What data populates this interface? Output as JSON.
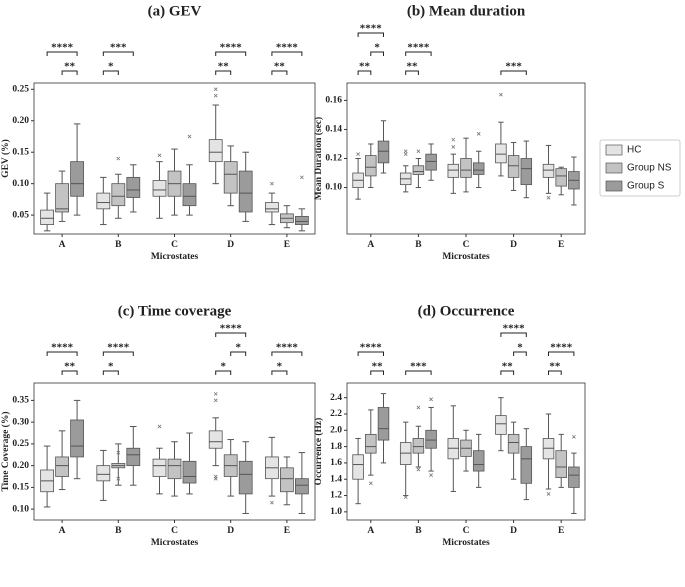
{
  "legend": {
    "position": "right",
    "entries": [
      {
        "name": "HC",
        "color": "#e4e4e4"
      },
      {
        "name": "Group NS",
        "color": "#c3c3c3"
      },
      {
        "name": "Group S",
        "color": "#9b9b9b"
      }
    ]
  },
  "chart_data": [
    {
      "type": "box",
      "title": "(a) GEV",
      "x_label": "Microstates",
      "y_label": "GEV (%)",
      "categories": [
        "A",
        "B",
        "C",
        "D",
        "E"
      ],
      "ylim": [
        0.02,
        0.26
      ],
      "yticks": [
        0.05,
        {
          "value": 0.1,
          "label": "0.10"
        },
        0.15,
        {
          "value": 0.2,
          "label": "0.20"
        },
        0.25
      ],
      "boxes": [
        [
          {
            "whislo": 0.025,
            "q1": 0.035,
            "med": 0.045,
            "q3": 0.058,
            "whishi": 0.085,
            "fliers": []
          },
          {
            "whislo": 0.04,
            "q1": 0.055,
            "med": 0.06,
            "q3": 0.1,
            "whishi": 0.12,
            "fliers": []
          },
          {
            "whislo": 0.05,
            "q1": 0.08,
            "med": 0.1,
            "q3": 0.135,
            "whishi": 0.195,
            "fliers": []
          }
        ],
        [
          {
            "whislo": 0.035,
            "q1": 0.06,
            "med": 0.07,
            "q3": 0.085,
            "whishi": 0.11,
            "fliers": []
          },
          {
            "whislo": 0.045,
            "q1": 0.065,
            "med": 0.08,
            "q3": 0.1,
            "whishi": 0.115,
            "fliers": [
              0.14
            ]
          },
          {
            "whislo": 0.055,
            "q1": 0.078,
            "med": 0.09,
            "q3": 0.11,
            "whishi": 0.13,
            "fliers": []
          }
        ],
        [
          {
            "whislo": 0.045,
            "q1": 0.08,
            "med": 0.09,
            "q3": 0.105,
            "whishi": 0.135,
            "fliers": [
              0.145
            ]
          },
          {
            "whislo": 0.05,
            "q1": 0.08,
            "med": 0.1,
            "q3": 0.12,
            "whishi": 0.155,
            "fliers": []
          },
          {
            "whislo": 0.05,
            "q1": 0.065,
            "med": 0.08,
            "q3": 0.1,
            "whishi": 0.13,
            "fliers": [
              0.175
            ]
          }
        ],
        [
          {
            "whislo": 0.1,
            "q1": 0.135,
            "med": 0.15,
            "q3": 0.17,
            "whishi": 0.225,
            "fliers": [
              0.24,
              0.25
            ]
          },
          {
            "whislo": 0.065,
            "q1": 0.085,
            "med": 0.115,
            "q3": 0.135,
            "whishi": 0.16,
            "fliers": []
          },
          {
            "whislo": 0.04,
            "q1": 0.055,
            "med": 0.085,
            "q3": 0.12,
            "whishi": 0.15,
            "fliers": []
          }
        ],
        [
          {
            "whislo": 0.035,
            "q1": 0.055,
            "med": 0.06,
            "q3": 0.07,
            "whishi": 0.085,
            "fliers": [
              0.1
            ]
          },
          {
            "whislo": 0.03,
            "q1": 0.038,
            "med": 0.045,
            "q3": 0.052,
            "whishi": 0.065,
            "fliers": []
          },
          {
            "whislo": 0.025,
            "q1": 0.035,
            "med": 0.04,
            "q3": 0.048,
            "whishi": 0.06,
            "fliers": [
              0.11
            ]
          }
        ]
      ],
      "brackets": [
        {
          "category": 0,
          "groups": [
            0,
            2
          ],
          "label": "****"
        },
        {
          "category": 0,
          "groups": [
            1,
            2
          ],
          "label": "**"
        },
        {
          "category": 1,
          "groups": [
            0,
            2
          ],
          "label": "***"
        },
        {
          "category": 1,
          "groups": [
            0,
            1
          ],
          "label": "*"
        },
        {
          "category": 3,
          "groups": [
            0,
            2
          ],
          "label": "****"
        },
        {
          "category": 3,
          "groups": [
            0,
            1
          ],
          "label": "**"
        },
        {
          "category": 4,
          "groups": [
            0,
            2
          ],
          "label": "****"
        },
        {
          "category": 4,
          "groups": [
            0,
            1
          ],
          "label": "**"
        }
      ]
    },
    {
      "type": "box",
      "title": "(b) Mean duration",
      "x_label": "Microstates",
      "y_label": "Mean Duration (sec)",
      "categories": [
        "A",
        "B",
        "C",
        "D",
        "E"
      ],
      "ylim": [
        0.068,
        0.172
      ],
      "yticks": [
        {
          "value": 0.1,
          "label": "0.10"
        },
        0.12,
        0.14,
        0.16
      ],
      "boxes": [
        [
          {
            "whislo": 0.092,
            "q1": 0.1,
            "med": 0.105,
            "q3": 0.11,
            "whishi": 0.12,
            "fliers": [
              0.123
            ]
          },
          {
            "whislo": 0.1,
            "q1": 0.108,
            "med": 0.114,
            "q3": 0.122,
            "whishi": 0.13,
            "fliers": []
          },
          {
            "whislo": 0.11,
            "q1": 0.117,
            "med": 0.125,
            "q3": 0.132,
            "whishi": 0.146,
            "fliers": []
          }
        ],
        [
          {
            "whislo": 0.097,
            "q1": 0.102,
            "med": 0.106,
            "q3": 0.11,
            "whishi": 0.115,
            "fliers": [
              0.123,
              0.125
            ]
          },
          {
            "whislo": 0.1,
            "q1": 0.109,
            "med": 0.111,
            "q3": 0.115,
            "whishi": 0.12,
            "fliers": [
              0.125
            ]
          },
          {
            "whislo": 0.105,
            "q1": 0.112,
            "med": 0.118,
            "q3": 0.123,
            "whishi": 0.13,
            "fliers": []
          }
        ],
        [
          {
            "whislo": 0.096,
            "q1": 0.107,
            "med": 0.112,
            "q3": 0.116,
            "whishi": 0.123,
            "fliers": [
              0.128,
              0.133
            ]
          },
          {
            "whislo": 0.097,
            "q1": 0.107,
            "med": 0.112,
            "q3": 0.12,
            "whishi": 0.134,
            "fliers": []
          },
          {
            "whislo": 0.1,
            "q1": 0.109,
            "med": 0.112,
            "q3": 0.117,
            "whishi": 0.125,
            "fliers": [
              0.137
            ]
          }
        ],
        [
          {
            "whislo": 0.108,
            "q1": 0.117,
            "med": 0.123,
            "q3": 0.13,
            "whishi": 0.145,
            "fliers": [
              0.164
            ]
          },
          {
            "whislo": 0.098,
            "q1": 0.107,
            "med": 0.115,
            "q3": 0.122,
            "whishi": 0.131,
            "fliers": []
          },
          {
            "whislo": 0.093,
            "q1": 0.102,
            "med": 0.113,
            "q3": 0.12,
            "whishi": 0.132,
            "fliers": []
          }
        ],
        [
          {
            "whislo": 0.096,
            "q1": 0.107,
            "med": 0.112,
            "q3": 0.116,
            "whishi": 0.129,
            "fliers": [
              0.093
            ]
          },
          {
            "whislo": 0.095,
            "q1": 0.101,
            "med": 0.108,
            "q3": 0.113,
            "whishi": 0.114,
            "fliers": []
          },
          {
            "whislo": 0.088,
            "q1": 0.099,
            "med": 0.105,
            "q3": 0.111,
            "whishi": 0.121,
            "fliers": []
          }
        ]
      ],
      "brackets": [
        {
          "category": 0,
          "groups": [
            0,
            2
          ],
          "label": "****"
        },
        {
          "category": 0,
          "groups": [
            1,
            2
          ],
          "label": "*"
        },
        {
          "category": 0,
          "groups": [
            0,
            1
          ],
          "label": "**"
        },
        {
          "category": 1,
          "groups": [
            0,
            2
          ],
          "label": "****"
        },
        {
          "category": 1,
          "groups": [
            0,
            1
          ],
          "label": "**"
        },
        {
          "category": 3,
          "groups": [
            0,
            2
          ],
          "label": "***"
        }
      ]
    },
    {
      "type": "box",
      "title": "(c) Time coverage",
      "x_label": "Microstates",
      "y_label": "Time Coverage (%)",
      "categories": [
        "A",
        "B",
        "C",
        "D",
        "E"
      ],
      "ylim": [
        0.075,
        0.39
      ],
      "yticks": [
        {
          "value": 0.1,
          "label": "0.10"
        },
        0.15,
        {
          "value": 0.2,
          "label": "0.20"
        },
        0.25,
        {
          "value": 0.3,
          "label": "0.30"
        },
        0.35
      ],
      "boxes": [
        [
          {
            "whislo": 0.105,
            "q1": 0.14,
            "med": 0.165,
            "q3": 0.19,
            "whishi": 0.245,
            "fliers": []
          },
          {
            "whislo": 0.145,
            "q1": 0.175,
            "med": 0.2,
            "q3": 0.22,
            "whishi": 0.28,
            "fliers": []
          },
          {
            "whislo": 0.17,
            "q1": 0.22,
            "med": 0.245,
            "q3": 0.305,
            "whishi": 0.35,
            "fliers": []
          }
        ],
        [
          {
            "whislo": 0.12,
            "q1": 0.165,
            "med": 0.18,
            "q3": 0.2,
            "whishi": 0.235,
            "fliers": []
          },
          {
            "whislo": 0.155,
            "q1": 0.195,
            "med": 0.2,
            "q3": 0.205,
            "whishi": 0.25,
            "fliers": [
              0.17,
              0.23
            ]
          },
          {
            "whislo": 0.155,
            "q1": 0.2,
            "med": 0.225,
            "q3": 0.24,
            "whishi": 0.29,
            "fliers": []
          }
        ],
        [
          {
            "whislo": 0.135,
            "q1": 0.175,
            "med": 0.2,
            "q3": 0.215,
            "whishi": 0.24,
            "fliers": [
              0.29
            ]
          },
          {
            "whislo": 0.13,
            "q1": 0.17,
            "med": 0.2,
            "q3": 0.215,
            "whishi": 0.255,
            "fliers": []
          },
          {
            "whislo": 0.135,
            "q1": 0.16,
            "med": 0.175,
            "q3": 0.21,
            "whishi": 0.275,
            "fliers": []
          }
        ],
        [
          {
            "whislo": 0.2,
            "q1": 0.24,
            "med": 0.255,
            "q3": 0.28,
            "whishi": 0.31,
            "fliers": [
              0.35,
              0.365,
              0.17,
              0.175
            ]
          },
          {
            "whislo": 0.13,
            "q1": 0.175,
            "med": 0.2,
            "q3": 0.225,
            "whishi": 0.26,
            "fliers": []
          },
          {
            "whislo": 0.09,
            "q1": 0.135,
            "med": 0.18,
            "q3": 0.21,
            "whishi": 0.255,
            "fliers": []
          }
        ],
        [
          {
            "whislo": 0.13,
            "q1": 0.17,
            "med": 0.195,
            "q3": 0.22,
            "whishi": 0.265,
            "fliers": [
              0.115
            ]
          },
          {
            "whislo": 0.11,
            "q1": 0.14,
            "med": 0.17,
            "q3": 0.195,
            "whishi": 0.22,
            "fliers": []
          },
          {
            "whislo": 0.09,
            "q1": 0.135,
            "med": 0.155,
            "q3": 0.17,
            "whishi": 0.23,
            "fliers": []
          }
        ]
      ],
      "brackets": [
        {
          "category": 0,
          "groups": [
            0,
            2
          ],
          "label": "****"
        },
        {
          "category": 0,
          "groups": [
            1,
            2
          ],
          "label": "**"
        },
        {
          "category": 1,
          "groups": [
            0,
            2
          ],
          "label": "****"
        },
        {
          "category": 1,
          "groups": [
            0,
            1
          ],
          "label": "*"
        },
        {
          "category": 3,
          "groups": [
            0,
            2
          ],
          "label": "****"
        },
        {
          "category": 3,
          "groups": [
            1,
            2
          ],
          "label": "*"
        },
        {
          "category": 3,
          "groups": [
            0,
            1
          ],
          "label": "*"
        },
        {
          "category": 4,
          "groups": [
            0,
            2
          ],
          "label": "****"
        },
        {
          "category": 4,
          "groups": [
            0,
            1
          ],
          "label": "*"
        }
      ]
    },
    {
      "type": "box",
      "title": "(d) Occurrence",
      "x_label": "Microstates",
      "y_label": "Occurrence (Hz)",
      "categories": [
        "A",
        "B",
        "C",
        "D",
        "E"
      ],
      "ylim": [
        0.9,
        2.58
      ],
      "yticks": [
        {
          "value": 1,
          "label": "1.0"
        },
        1.2,
        1.4,
        1.6,
        1.8,
        {
          "value": 2,
          "label": "2.0"
        },
        2.2,
        2.4
      ],
      "boxes": [
        [
          {
            "whislo": 1.1,
            "q1": 1.4,
            "med": 1.58,
            "q3": 1.7,
            "whishi": 1.9,
            "fliers": []
          },
          {
            "whislo": 1.45,
            "q1": 1.72,
            "med": 1.8,
            "q3": 1.95,
            "whishi": 2.25,
            "fliers": [
              1.35
            ]
          },
          {
            "whislo": 1.6,
            "q1": 1.88,
            "med": 2.02,
            "q3": 2.28,
            "whishi": 2.45,
            "fliers": []
          }
        ],
        [
          {
            "whislo": 1.2,
            "q1": 1.58,
            "med": 1.72,
            "q3": 1.85,
            "whishi": 2.1,
            "fliers": [
              1.18
            ]
          },
          {
            "whislo": 1.55,
            "q1": 1.72,
            "med": 1.8,
            "q3": 1.9,
            "whishi": 2.05,
            "fliers": [
              2.28,
              1.52
            ]
          },
          {
            "whislo": 1.5,
            "q1": 1.78,
            "med": 1.88,
            "q3": 2.0,
            "whishi": 2.28,
            "fliers": [
              2.38,
              1.45
            ]
          }
        ],
        [
          {
            "whislo": 1.25,
            "q1": 1.65,
            "med": 1.78,
            "q3": 1.9,
            "whishi": 2.3,
            "fliers": []
          },
          {
            "whislo": 1.5,
            "q1": 1.68,
            "med": 1.78,
            "q3": 1.88,
            "whishi": 2.0,
            "fliers": []
          },
          {
            "whislo": 1.3,
            "q1": 1.5,
            "med": 1.58,
            "q3": 1.75,
            "whishi": 1.95,
            "fliers": []
          }
        ],
        [
          {
            "whislo": 1.75,
            "q1": 1.95,
            "med": 2.08,
            "q3": 2.18,
            "whishi": 2.4,
            "fliers": []
          },
          {
            "whislo": 1.4,
            "q1": 1.72,
            "med": 1.85,
            "q3": 1.95,
            "whishi": 2.1,
            "fliers": []
          },
          {
            "whislo": 1.15,
            "q1": 1.35,
            "med": 1.65,
            "q3": 1.8,
            "whishi": 2.02,
            "fliers": []
          }
        ],
        [
          {
            "whislo": 1.28,
            "q1": 1.65,
            "med": 1.78,
            "q3": 1.9,
            "whishi": 2.2,
            "fliers": [
              1.22
            ]
          },
          {
            "whislo": 1.3,
            "q1": 1.42,
            "med": 1.55,
            "q3": 1.75,
            "whishi": 1.95,
            "fliers": []
          },
          {
            "whislo": 0.98,
            "q1": 1.3,
            "med": 1.45,
            "q3": 1.55,
            "whishi": 1.72,
            "fliers": [
              1.92
            ]
          }
        ]
      ],
      "brackets": [
        {
          "category": 0,
          "groups": [
            0,
            2
          ],
          "label": "****"
        },
        {
          "category": 0,
          "groups": [
            1,
            2
          ],
          "label": "**"
        },
        {
          "category": 1,
          "groups": [
            0,
            2
          ],
          "label": "***"
        },
        {
          "category": 3,
          "groups": [
            0,
            2
          ],
          "label": "****"
        },
        {
          "category": 3,
          "groups": [
            1,
            2
          ],
          "label": "*"
        },
        {
          "category": 3,
          "groups": [
            0,
            1
          ],
          "label": "**"
        },
        {
          "category": 4,
          "groups": [
            0,
            2
          ],
          "label": "****"
        },
        {
          "category": 4,
          "groups": [
            0,
            1
          ],
          "label": "**"
        }
      ]
    }
  ]
}
